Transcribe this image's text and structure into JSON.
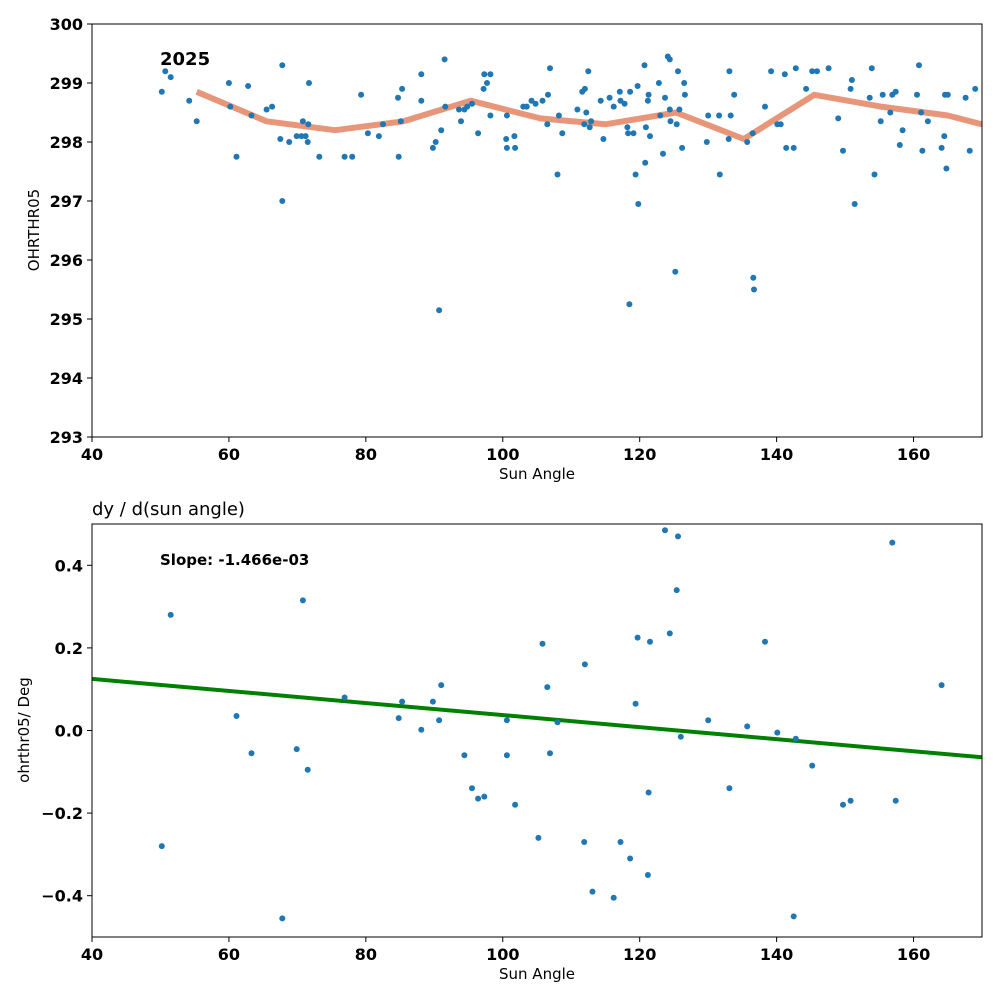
{
  "chart_data": [
    {
      "type": "scatter",
      "title": "",
      "annotation": "2025",
      "xlabel": "Sun Angle",
      "ylabel": "OHRTHR05",
      "xlim": [
        40,
        170
      ],
      "ylim": [
        293,
        300
      ],
      "xticks": [
        "40",
        "60",
        "80",
        "100",
        "120",
        "140",
        "160"
      ],
      "yticks": [
        "293",
        "294",
        "295",
        "296",
        "297",
        "298",
        "299",
        "300"
      ],
      "grid": false,
      "colors": {
        "points": "#1f77b4",
        "trend": "#e8967a"
      },
      "series": [
        {
          "points": [
            [
              50.2,
              298.85
            ],
            [
              50.7,
              299.2
            ],
            [
              51.5,
              299.1
            ],
            [
              54.2,
              298.7
            ],
            [
              55.3,
              298.35
            ],
            [
              60.0,
              299.0
            ],
            [
              60.2,
              298.6
            ],
            [
              61.1,
              297.75
            ],
            [
              62.8,
              298.95
            ],
            [
              63.3,
              298.45
            ],
            [
              65.5,
              298.55
            ],
            [
              66.3,
              298.6
            ],
            [
              67.5,
              298.05
            ],
            [
              67.8,
              299.3
            ],
            [
              67.8,
              297.0
            ],
            [
              68.8,
              298.0
            ],
            [
              69.9,
              298.1
            ],
            [
              70.6,
              298.1
            ],
            [
              70.8,
              298.35
            ],
            [
              71.2,
              298.1
            ],
            [
              71.5,
              298.0
            ],
            [
              71.6,
              298.3
            ],
            [
              71.7,
              299.0
            ],
            [
              73.2,
              297.75
            ],
            [
              76.9,
              297.75
            ],
            [
              78.0,
              297.75
            ],
            [
              79.3,
              298.8
            ],
            [
              80.3,
              298.15
            ],
            [
              81.9,
              298.1
            ],
            [
              82.5,
              298.3
            ],
            [
              84.7,
              298.75
            ],
            [
              84.8,
              297.75
            ],
            [
              85.1,
              298.35
            ],
            [
              85.3,
              298.9
            ],
            [
              88.1,
              299.15
            ],
            [
              88.1,
              298.7
            ],
            [
              89.8,
              297.9
            ],
            [
              90.2,
              298.0
            ],
            [
              90.7,
              295.15
            ],
            [
              91.0,
              298.2
            ],
            [
              91.5,
              299.4
            ],
            [
              91.6,
              298.6
            ],
            [
              93.6,
              298.55
            ],
            [
              93.9,
              298.35
            ],
            [
              94.4,
              298.55
            ],
            [
              94.8,
              298.6
            ],
            [
              95.5,
              298.65
            ],
            [
              96.4,
              298.15
            ],
            [
              97.2,
              298.9
            ],
            [
              97.3,
              299.15
            ],
            [
              97.7,
              299.0
            ],
            [
              98.2,
              299.15
            ],
            [
              98.2,
              298.45
            ],
            [
              100.5,
              298.05
            ],
            [
              100.6,
              298.45
            ],
            [
              100.6,
              297.9
            ],
            [
              101.7,
              298.1
            ],
            [
              101.8,
              297.9
            ],
            [
              103.0,
              298.6
            ],
            [
              103.5,
              298.6
            ],
            [
              104.2,
              298.7
            ],
            [
              104.8,
              298.65
            ],
            [
              105.8,
              298.7
            ],
            [
              106.5,
              298.3
            ],
            [
              106.6,
              298.8
            ],
            [
              106.9,
              299.25
            ],
            [
              108.0,
              297.45
            ],
            [
              108.2,
              298.45
            ],
            [
              108.7,
              298.15
            ],
            [
              110.9,
              298.55
            ],
            [
              111.6,
              298.85
            ],
            [
              111.9,
              298.3
            ],
            [
              112.0,
              298.9
            ],
            [
              112.2,
              298.5
            ],
            [
              112.5,
              299.2
            ],
            [
              112.7,
              298.25
            ],
            [
              112.9,
              298.35
            ],
            [
              114.3,
              298.7
            ],
            [
              114.7,
              298.05
            ],
            [
              115.6,
              298.75
            ],
            [
              116.2,
              298.6
            ],
            [
              117.1,
              298.85
            ],
            [
              117.2,
              298.7
            ],
            [
              117.8,
              298.65
            ],
            [
              118.2,
              298.25
            ],
            [
              118.3,
              298.15
            ],
            [
              118.5,
              295.25
            ],
            [
              118.6,
              298.85
            ],
            [
              119.1,
              298.15
            ],
            [
              119.4,
              297.45
            ],
            [
              119.7,
              298.95
            ],
            [
              119.8,
              296.95
            ],
            [
              120.7,
              299.3
            ],
            [
              120.8,
              297.65
            ],
            [
              120.9,
              298.25
            ],
            [
              121.2,
              298.7
            ],
            [
              121.3,
              298.8
            ],
            [
              121.5,
              298.1
            ],
            [
              122.8,
              299.0
            ],
            [
              123.0,
              298.45
            ],
            [
              123.4,
              297.8
            ],
            [
              123.7,
              298.75
            ],
            [
              124.1,
              299.45
            ],
            [
              124.4,
              299.4
            ],
            [
              124.4,
              298.55
            ],
            [
              124.5,
              298.35
            ],
            [
              125.2,
              295.8
            ],
            [
              125.4,
              298.3
            ],
            [
              125.6,
              299.2
            ],
            [
              125.8,
              298.55
            ],
            [
              126.2,
              297.9
            ],
            [
              126.5,
              299.0
            ],
            [
              126.6,
              298.8
            ],
            [
              129.8,
              298.0
            ],
            [
              130.0,
              298.45
            ],
            [
              131.6,
              298.45
            ],
            [
              131.7,
              297.45
            ],
            [
              133.0,
              298.05
            ],
            [
              133.1,
              299.2
            ],
            [
              133.3,
              298.45
            ],
            [
              133.8,
              298.8
            ],
            [
              135.7,
              298.0
            ],
            [
              136.5,
              298.15
            ],
            [
              136.6,
              295.7
            ],
            [
              136.7,
              295.5
            ],
            [
              138.3,
              298.6
            ],
            [
              139.2,
              299.2
            ],
            [
              140.1,
              298.3
            ],
            [
              140.6,
              298.3
            ],
            [
              141.2,
              299.15
            ],
            [
              141.4,
              297.9
            ],
            [
              142.5,
              297.9
            ],
            [
              142.8,
              299.25
            ],
            [
              144.3,
              298.9
            ],
            [
              145.2,
              299.2
            ],
            [
              145.9,
              299.2
            ],
            [
              147.6,
              299.25
            ],
            [
              149.0,
              298.4
            ],
            [
              149.7,
              297.85
            ],
            [
              150.8,
              298.9
            ],
            [
              151.0,
              299.05
            ],
            [
              151.4,
              296.95
            ],
            [
              153.6,
              298.75
            ],
            [
              153.9,
              299.25
            ],
            [
              154.3,
              297.45
            ],
            [
              155.2,
              298.35
            ],
            [
              155.5,
              298.8
            ],
            [
              156.6,
              298.5
            ],
            [
              156.9,
              298.8
            ],
            [
              157.4,
              298.85
            ],
            [
              158.0,
              297.95
            ],
            [
              158.4,
              298.2
            ],
            [
              160.5,
              298.8
            ],
            [
              160.8,
              299.3
            ],
            [
              161.1,
              298.5
            ],
            [
              161.3,
              297.85
            ],
            [
              162.1,
              298.35
            ],
            [
              164.1,
              297.9
            ],
            [
              164.5,
              298.1
            ],
            [
              164.6,
              298.8
            ],
            [
              164.8,
              297.55
            ],
            [
              165.0,
              298.8
            ],
            [
              167.6,
              298.75
            ],
            [
              168.2,
              297.85
            ],
            [
              169.0,
              298.9
            ]
          ]
        }
      ],
      "trend": [
        [
          55.3,
          298.85
        ],
        [
          65.5,
          298.35
        ],
        [
          75.5,
          298.2
        ],
        [
          85.5,
          298.35
        ],
        [
          95.3,
          298.7
        ],
        [
          105.5,
          298.4
        ],
        [
          115.0,
          298.3
        ],
        [
          125.3,
          298.5
        ],
        [
          135.2,
          298.05
        ],
        [
          145.5,
          298.8
        ],
        [
          155.2,
          298.6
        ],
        [
          165.0,
          298.45
        ],
        [
          170,
          298.3
        ]
      ]
    },
    {
      "type": "scatter",
      "title": "dy / d(sun angle)",
      "annotation": "Slope: -1.466e-03",
      "xlabel": "Sun Angle",
      "ylabel": "ohrthr05/ Deg",
      "xlim": [
        40,
        170
      ],
      "ylim": [
        -0.5,
        0.5
      ],
      "xticks": [
        "40",
        "60",
        "80",
        "100",
        "120",
        "140",
        "160"
      ],
      "yticks": [
        "−0.4",
        "−0.2",
        "0.0",
        "0.2",
        "0.4"
      ],
      "ytick_values": [
        -0.4,
        -0.2,
        0.0,
        0.2,
        0.4
      ],
      "grid": false,
      "colors": {
        "points": "#1f77b4",
        "fit": "#008000"
      },
      "series": [
        {
          "points": [
            [
              50.2,
              -0.28
            ],
            [
              51.5,
              0.28
            ],
            [
              61.1,
              0.035
            ],
            [
              63.3,
              -0.055
            ],
            [
              67.8,
              -0.455
            ],
            [
              69.9,
              -0.045
            ],
            [
              70.8,
              0.315
            ],
            [
              71.5,
              -0.095
            ],
            [
              76.9,
              0.08
            ],
            [
              84.8,
              0.03
            ],
            [
              85.3,
              0.07
            ],
            [
              88.1,
              0.002
            ],
            [
              89.8,
              0.07
            ],
            [
              90.7,
              0.025
            ],
            [
              91.0,
              0.11
            ],
            [
              94.4,
              -0.06
            ],
            [
              95.5,
              -0.14
            ],
            [
              96.4,
              -0.165
            ],
            [
              97.3,
              -0.16
            ],
            [
              100.6,
              0.025
            ],
            [
              100.6,
              -0.06
            ],
            [
              101.8,
              -0.18
            ],
            [
              105.2,
              -0.26
            ],
            [
              105.8,
              0.21
            ],
            [
              106.5,
              0.105
            ],
            [
              106.9,
              -0.055
            ],
            [
              108.0,
              0.02
            ],
            [
              111.9,
              -0.27
            ],
            [
              112.0,
              0.16
            ],
            [
              113.1,
              -0.39
            ],
            [
              116.2,
              -0.405
            ],
            [
              117.2,
              -0.27
            ],
            [
              118.6,
              -0.31
            ],
            [
              119.4,
              0.065
            ],
            [
              119.7,
              0.225
            ],
            [
              121.2,
              -0.35
            ],
            [
              121.3,
              -0.15
            ],
            [
              121.5,
              0.215
            ],
            [
              123.7,
              0.485
            ],
            [
              124.4,
              0.235
            ],
            [
              125.4,
              0.34
            ],
            [
              125.6,
              0.47
            ],
            [
              126.0,
              -0.015
            ],
            [
              130.0,
              0.025
            ],
            [
              133.1,
              -0.14
            ],
            [
              135.7,
              0.01
            ],
            [
              138.3,
              0.215
            ],
            [
              140.1,
              -0.005
            ],
            [
              142.5,
              -0.45
            ],
            [
              142.8,
              -0.02
            ],
            [
              145.2,
              -0.085
            ],
            [
              149.7,
              -0.18
            ],
            [
              150.8,
              -0.17
            ],
            [
              156.9,
              0.455
            ],
            [
              157.4,
              -0.17
            ],
            [
              164.1,
              0.11
            ]
          ]
        }
      ],
      "fit": [
        [
          40,
          0.125
        ],
        [
          170,
          -0.065
        ]
      ]
    }
  ]
}
